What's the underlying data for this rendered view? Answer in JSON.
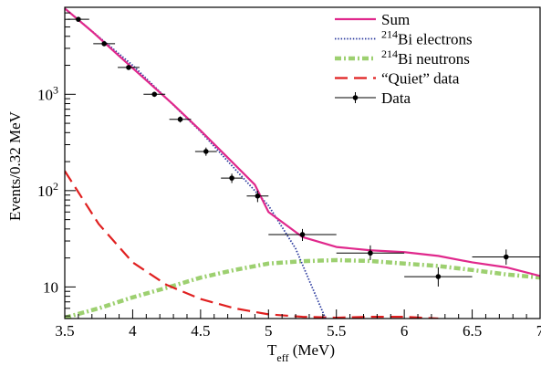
{
  "chart_data": {
    "type": "line",
    "xlabel_main": "T",
    "xlabel_sub": "eff",
    "xlabel_unit": " (MeV)",
    "ylabel": "Events/0.32 MeV",
    "xlim": [
      3.5,
      7.0
    ],
    "ylim": [
      4.7,
      8000
    ],
    "yscale": "log",
    "legend_position": "top-right",
    "x_ticks": [
      {
        "value": 3.5,
        "label": "3.5"
      },
      {
        "value": 4.0,
        "label": "4"
      },
      {
        "value": 4.5,
        "label": "4.5"
      },
      {
        "value": 5.0,
        "label": "5"
      },
      {
        "value": 5.5,
        "label": "5.5"
      },
      {
        "value": 6.0,
        "label": "6"
      },
      {
        "value": 6.5,
        "label": "6.5"
      },
      {
        "value": 7.0,
        "label": "7"
      }
    ],
    "y_ticks": [
      {
        "value": 10,
        "base": "10",
        "exp": ""
      },
      {
        "value": 100,
        "base": "10",
        "exp": "2"
      },
      {
        "value": 1000,
        "base": "10",
        "exp": "3"
      }
    ],
    "series": [
      {
        "name": "Sum",
        "name_sup": "",
        "name_text": "Sum",
        "style": "solid",
        "color": "#e0288c",
        "x": [
          3.5,
          3.7,
          3.9,
          4.1,
          4.3,
          4.5,
          4.7,
          4.9,
          5.0,
          5.25,
          5.5,
          5.75,
          6.0,
          6.25,
          6.5,
          6.75,
          7.0
        ],
        "y": [
          7800,
          4500,
          2500,
          1400,
          780,
          420,
          220,
          115,
          60,
          33,
          26,
          24,
          23,
          21,
          18,
          16,
          13
        ]
      },
      {
        "name": "214Bi electrons",
        "name_sup": "214",
        "name_text": "Bi electrons",
        "style": "dotted",
        "color": "#2b3a9e",
        "x": [
          3.5,
          4.0,
          4.5,
          5.0,
          5.2,
          5.42
        ],
        "y": [
          7800,
          2000,
          410,
          70,
          25,
          4.7
        ]
      },
      {
        "name": "214Bi neutrons",
        "name_sup": "214",
        "name_text": "Bi neutrons",
        "style": "dashdot",
        "color": "#7cc040",
        "x": [
          3.5,
          3.75,
          4.0,
          4.25,
          4.5,
          4.75,
          5.0,
          5.25,
          5.5,
          5.75,
          6.0,
          6.25,
          6.5,
          6.75,
          7.0
        ],
        "y": [
          4.8,
          6.0,
          7.8,
          9.8,
          12.5,
          15.0,
          17.5,
          18.5,
          19.0,
          18.6,
          17.5,
          16.5,
          15.0,
          13.5,
          12.5
        ]
      },
      {
        "name": "\"Quiet\" data",
        "name_sup": "",
        "name_text": "“Quiet” data",
        "style": "dashed",
        "color": "#e02020",
        "x": [
          3.5,
          3.75,
          4.0,
          4.25,
          4.5,
          4.75,
          5.0,
          5.25,
          5.5,
          5.75,
          6.0,
          6.25
        ],
        "y": [
          160,
          45,
          18,
          10.5,
          7.5,
          6.0,
          5.2,
          4.9,
          4.8,
          4.9,
          4.9,
          4.7
        ]
      }
    ],
    "data_points": {
      "name": "Data",
      "color": "#000000",
      "points": [
        {
          "x": 3.6,
          "y": 6000,
          "xerr": 0.08,
          "yerr_lo": 200,
          "yerr_hi": 200
        },
        {
          "x": 3.79,
          "y": 3350,
          "xerr": 0.08,
          "yerr_lo": 150,
          "yerr_hi": 150
        },
        {
          "x": 3.97,
          "y": 1900,
          "xerr": 0.08,
          "yerr_lo": 100,
          "yerr_hi": 100
        },
        {
          "x": 4.16,
          "y": 1000,
          "xerr": 0.08,
          "yerr_lo": 60,
          "yerr_hi": 60
        },
        {
          "x": 4.35,
          "y": 550,
          "xerr": 0.08,
          "yerr_lo": 40,
          "yerr_hi": 40
        },
        {
          "x": 4.54,
          "y": 255,
          "xerr": 0.08,
          "yerr_lo": 25,
          "yerr_hi": 25
        },
        {
          "x": 4.73,
          "y": 135,
          "xerr": 0.08,
          "yerr_lo": 15,
          "yerr_hi": 15
        },
        {
          "x": 4.92,
          "y": 88,
          "xerr": 0.08,
          "yerr_lo": 12,
          "yerr_hi": 12
        },
        {
          "x": 5.25,
          "y": 35,
          "xerr": 0.25,
          "yerr_lo": 5,
          "yerr_hi": 5
        },
        {
          "x": 5.75,
          "y": 22.5,
          "xerr": 0.25,
          "yerr_lo": 3.5,
          "yerr_hi": 4.5
        },
        {
          "x": 6.25,
          "y": 12.8,
          "xerr": 0.25,
          "yerr_lo": 2.7,
          "yerr_hi": 3.2
        },
        {
          "x": 6.75,
          "y": 20.5,
          "xerr": 0.25,
          "yerr_lo": 3.5,
          "yerr_hi": 4.0
        }
      ]
    }
  }
}
